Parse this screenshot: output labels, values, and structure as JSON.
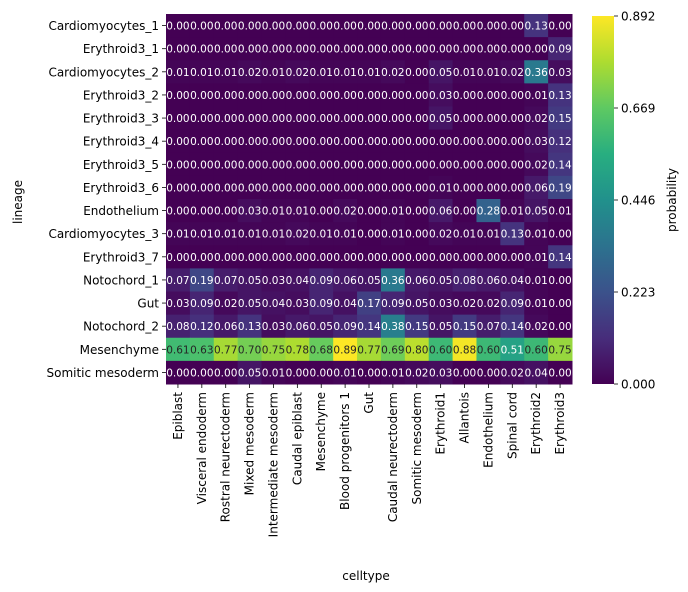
{
  "chart_data": {
    "type": "heatmap",
    "xlabel": "celltype",
    "ylabel": "lineage",
    "colorbar": {
      "label": "probability",
      "ticks": [
        "0.000",
        "0.223",
        "0.446",
        "0.669",
        "0.892"
      ],
      "min": 0.0,
      "max": 0.892,
      "colormap": "viridis"
    },
    "x_categories": [
      "Epiblast",
      "Visceral endoderm",
      "Rostral neurectoderm",
      "Mixed mesoderm",
      "Intermediate mesoderm",
      "Caudal epiblast",
      "Mesenchyme",
      "Blood progenitors 1",
      "Gut",
      "Caudal neurectoderm",
      "Somitic mesoderm",
      "Erythroid1",
      "Allantois",
      "Endothelium",
      "Spinal cord",
      "Erythroid2",
      "Erythroid3"
    ],
    "y_categories": [
      "Cardiomyocytes_1",
      "Erythroid3_1",
      "Cardiomyocytes_2",
      "Erythroid3_2",
      "Erythroid3_3",
      "Erythroid3_4",
      "Erythroid3_5",
      "Erythroid3_6",
      "Endothelium",
      "Cardiomyocytes_3",
      "Erythroid3_7",
      "Notochord_1",
      "Gut",
      "Notochord_2",
      "Mesenchyme",
      "Somitic mesoderm"
    ],
    "values": [
      [
        0.0,
        0.0,
        0.0,
        0.0,
        0.0,
        0.0,
        0.0,
        0.0,
        0.0,
        0.0,
        0.0,
        0.0,
        0.0,
        0.0,
        0.0,
        0.13,
        0.0
      ],
      [
        0.0,
        0.0,
        0.0,
        0.0,
        0.0,
        0.0,
        0.0,
        0.0,
        0.0,
        0.0,
        0.0,
        0.0,
        0.0,
        0.0,
        0.0,
        0.0,
        0.09
      ],
      [
        0.01,
        0.01,
        0.01,
        0.02,
        0.01,
        0.02,
        0.01,
        0.01,
        0.01,
        0.02,
        0.0,
        0.05,
        0.01,
        0.01,
        0.02,
        0.36,
        0.03
      ],
      [
        0.0,
        0.0,
        0.0,
        0.0,
        0.0,
        0.0,
        0.0,
        0.0,
        0.0,
        0.0,
        0.0,
        0.03,
        0.0,
        0.0,
        0.0,
        0.01,
        0.13
      ],
      [
        0.0,
        0.0,
        0.0,
        0.0,
        0.0,
        0.0,
        0.0,
        0.0,
        0.0,
        0.0,
        0.0,
        0.05,
        0.0,
        0.0,
        0.0,
        0.02,
        0.15
      ],
      [
        0.0,
        0.0,
        0.0,
        0.0,
        0.0,
        0.0,
        0.0,
        0.0,
        0.0,
        0.0,
        0.0,
        0.0,
        0.0,
        0.0,
        0.0,
        0.03,
        0.12
      ],
      [
        0.0,
        0.0,
        0.0,
        0.0,
        0.0,
        0.0,
        0.0,
        0.0,
        0.0,
        0.0,
        0.0,
        0.0,
        0.0,
        0.0,
        0.0,
        0.02,
        0.14
      ],
      [
        0.0,
        0.0,
        0.0,
        0.0,
        0.0,
        0.0,
        0.0,
        0.0,
        0.0,
        0.0,
        0.0,
        0.01,
        0.0,
        0.0,
        0.0,
        0.06,
        0.19
      ],
      [
        0.0,
        0.0,
        0.0,
        0.03,
        0.01,
        0.01,
        0.0,
        0.02,
        0.0,
        0.01,
        0.0,
        0.06,
        0.0,
        0.28,
        0.01,
        0.05,
        0.01
      ],
      [
        0.01,
        0.01,
        0.01,
        0.01,
        0.01,
        0.02,
        0.01,
        0.01,
        0.0,
        0.01,
        0.0,
        0.02,
        0.01,
        0.01,
        0.13,
        0.01,
        0.0
      ],
      [
        0.0,
        0.0,
        0.0,
        0.0,
        0.0,
        0.0,
        0.0,
        0.0,
        0.0,
        0.0,
        0.0,
        0.0,
        0.0,
        0.0,
        0.0,
        0.01,
        0.14
      ],
      [
        0.07,
        0.19,
        0.07,
        0.05,
        0.03,
        0.04,
        0.09,
        0.06,
        0.05,
        0.36,
        0.06,
        0.05,
        0.08,
        0.06,
        0.04,
        0.01,
        0.0
      ],
      [
        0.03,
        0.09,
        0.02,
        0.05,
        0.04,
        0.03,
        0.09,
        0.04,
        0.17,
        0.09,
        0.05,
        0.03,
        0.02,
        0.02,
        0.09,
        0.01,
        0.0
      ],
      [
        0.08,
        0.12,
        0.06,
        0.13,
        0.03,
        0.06,
        0.05,
        0.09,
        0.14,
        0.38,
        0.15,
        0.05,
        0.15,
        0.07,
        0.14,
        0.02,
        0.0
      ],
      [
        0.61,
        0.63,
        0.77,
        0.7,
        0.75,
        0.78,
        0.68,
        0.89,
        0.77,
        0.69,
        0.8,
        0.6,
        0.88,
        0.6,
        0.51,
        0.6,
        0.75
      ],
      [
        0.0,
        0.0,
        0.0,
        0.05,
        0.01,
        0.0,
        0.0,
        0.01,
        0.0,
        0.01,
        0.02,
        0.03,
        0.0,
        0.0,
        0.02,
        0.04,
        0.0
      ]
    ],
    "value_labels": [
      [
        "0.00",
        "0.00",
        "0.00",
        "0.00",
        "0.00",
        "0.00",
        "0.00",
        "0.00",
        "0.00",
        "0.00",
        "0.00",
        "0.00",
        "0.00",
        "0.00",
        "0.00",
        "0.13",
        "0.00"
      ],
      [
        "0.00",
        "0.00",
        "0.00",
        "0.00",
        "0.00",
        "0.00",
        "0.00",
        "0.00",
        "0.00",
        "0.00",
        "0.00",
        "0.00",
        "0.00",
        "0.00",
        "0.00",
        "0.00",
        "0.09"
      ],
      [
        "0.01",
        "0.01",
        "0.01",
        "0.02",
        "0.01",
        "0.02",
        "0.01",
        "0.01",
        "0.01",
        "0.02",
        "0.00",
        "0.05",
        "0.01",
        "0.01",
        "0.02",
        "0.36",
        "0.03"
      ],
      [
        "0.00",
        "0.00",
        "0.00",
        "0.00",
        "0.00",
        "0.00",
        "0.00",
        "0.00",
        "0.00",
        "0.00",
        "0.00",
        "0.03",
        "0.00",
        "0.00",
        "0.00",
        "0.01",
        "0.13"
      ],
      [
        "0.00",
        "0.00",
        "0.00",
        "0.00",
        "0.00",
        "0.00",
        "0.00",
        "0.00",
        "0.00",
        "0.00",
        "0.00",
        "0.05",
        "0.00",
        "0.00",
        "0.00",
        "0.02",
        "0.15"
      ],
      [
        "0.00",
        "0.00",
        "0.00",
        "0.00",
        "0.00",
        "0.00",
        "0.00",
        "0.00",
        "0.00",
        "0.00",
        "0.00",
        "0.00",
        "0.00",
        "0.00",
        "0.00",
        "0.03",
        "0.12"
      ],
      [
        "0.00",
        "0.00",
        "0.00",
        "0.00",
        "0.00",
        "0.00",
        "0.00",
        "0.00",
        "0.00",
        "0.00",
        "0.00",
        "0.00",
        "0.00",
        "0.00",
        "0.00",
        "0.02",
        "0.14"
      ],
      [
        "0.00",
        "0.00",
        "0.00",
        "0.00",
        "0.00",
        "0.00",
        "0.00",
        "0.00",
        "0.00",
        "0.00",
        "0.00",
        "0.01",
        "0.00",
        "0.00",
        "0.00",
        "0.06",
        "0.19"
      ],
      [
        "0.00",
        "0.00",
        "0.00",
        "0.03",
        "0.01",
        "0.01",
        "0.00",
        "0.02",
        "0.00",
        "0.01",
        "0.00",
        "0.06",
        "0.00",
        "0.28",
        "0.01",
        "0.05",
        "0.01"
      ],
      [
        "0.01",
        "0.01",
        "0.01",
        "0.01",
        "0.01",
        "0.02",
        "0.01",
        "0.01",
        "0.00",
        "0.01",
        "0.00",
        "0.02",
        "0.01",
        "0.01",
        "0.13",
        "0.01",
        "0.00"
      ],
      [
        "0.00",
        "0.00",
        "0.00",
        "0.00",
        "0.00",
        "0.00",
        "0.00",
        "0.00",
        "0.00",
        "0.00",
        "0.00",
        "0.00",
        "0.00",
        "0.00",
        "0.00",
        "0.01",
        "0.14"
      ],
      [
        "0.07",
        "0.19",
        "0.07",
        "0.05",
        "0.03",
        "0.04",
        "0.09",
        "0.06",
        "0.05",
        "0.36",
        "0.06",
        "0.05",
        "0.08",
        "0.06",
        "0.04",
        "0.01",
        "0.00"
      ],
      [
        "0.03",
        "0.09",
        "0.02",
        "0.05",
        "0.04",
        "0.03",
        "0.09",
        "0.04",
        "0.17",
        "0.09",
        "0.05",
        "0.03",
        "0.02",
        "0.02",
        "0.09",
        "0.01",
        "0.00"
      ],
      [
        "0.08",
        "0.12",
        "0.06",
        "0.13",
        "0.03",
        "0.06",
        "0.05",
        "0.09",
        "0.14",
        "0.38",
        "0.15",
        "0.05",
        "0.15",
        "0.07",
        "0.14",
        "0.02",
        "0.00"
      ],
      [
        "0.61",
        "0.63",
        "0.77",
        "0.70",
        "0.75",
        "0.78",
        "0.68",
        "0.89",
        "0.77",
        "0.69",
        "0.80",
        "0.60",
        "0.88",
        "0.60",
        "0.51",
        "0.60",
        "0.75"
      ],
      [
        "0.00",
        "0.00",
        "0.00",
        "0.05",
        "0.01",
        "0.00",
        "0.00",
        "0.01",
        "0.00",
        "0.01",
        "0.02",
        "0.03",
        "0.00",
        "0.00",
        "0.02",
        "0.04",
        "0.00"
      ]
    ],
    "grid": false
  }
}
